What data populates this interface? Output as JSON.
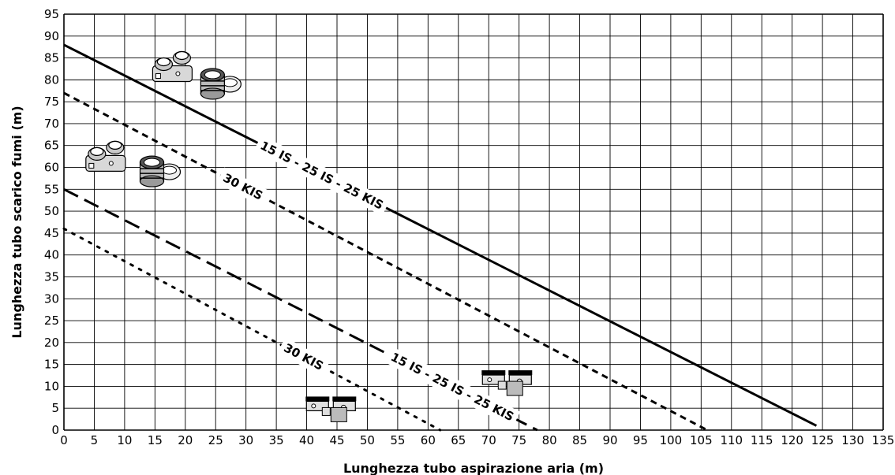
{
  "chart_data": {
    "type": "line",
    "xlabel": "Lunghezza tubo aspirazione aria (m)",
    "ylabel": "Lunghezza tubo scarico fumi (m)",
    "xlim": [
      0,
      135
    ],
    "ylim": [
      0,
      95
    ],
    "xticks": [
      0,
      5,
      10,
      15,
      20,
      25,
      30,
      35,
      40,
      45,
      50,
      55,
      60,
      65,
      70,
      75,
      80,
      85,
      90,
      95,
      100,
      105,
      110,
      115,
      120,
      125,
      130,
      135
    ],
    "yticks": [
      0,
      5,
      10,
      15,
      20,
      25,
      30,
      35,
      40,
      45,
      50,
      55,
      60,
      65,
      70,
      75,
      80,
      85,
      90,
      95
    ],
    "grid": true,
    "series": [
      {
        "name": "15 IS - 25 IS - 25 KIS",
        "style": "solid",
        "x": [
          0,
          124
        ],
        "y": [
          88,
          1
        ]
      },
      {
        "name": "30 KIS",
        "style": "short-dash",
        "x": [
          0,
          106
        ],
        "y": [
          77,
          0
        ]
      },
      {
        "name": "15 IS - 25 IS - 25 KIS",
        "style": "long-dash",
        "x": [
          0,
          78
        ],
        "y": [
          55,
          0
        ]
      },
      {
        "name": "30 KIS",
        "style": "dotted",
        "x": [
          0,
          62
        ],
        "y": [
          46,
          0
        ]
      }
    ],
    "icons": [
      "coaxial-kit-icon",
      "twin-pipe-kit-icon",
      "coaxial-kit-icon",
      "twin-pipe-kit-icon",
      "boiler-connection-icon",
      "boiler-connection-icon"
    ]
  }
}
